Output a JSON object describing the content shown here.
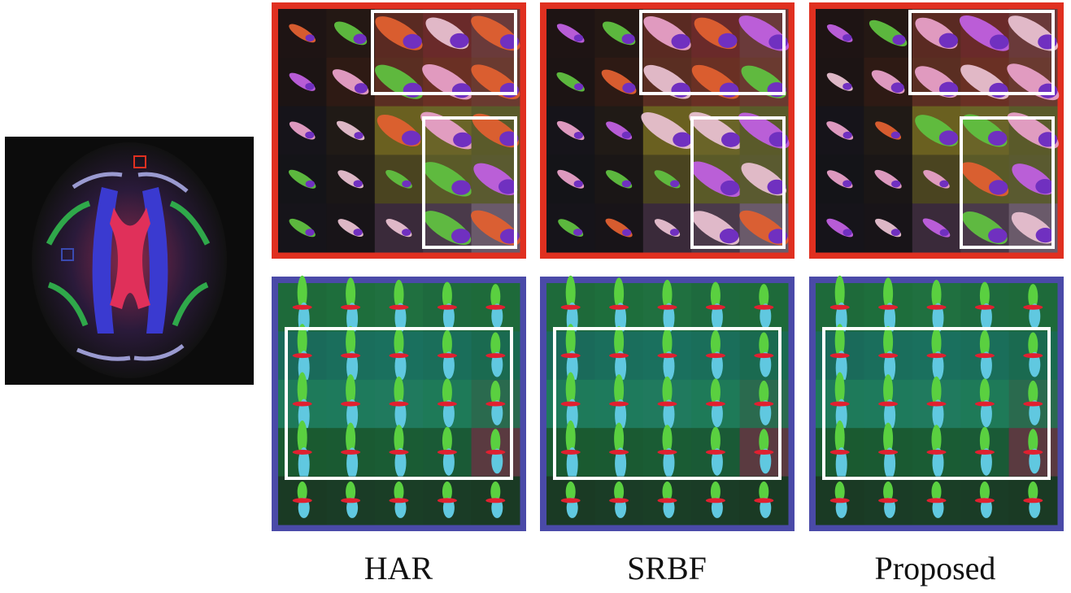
{
  "labels": [
    "HAR",
    "SRBF",
    "Proposed"
  ]
}
